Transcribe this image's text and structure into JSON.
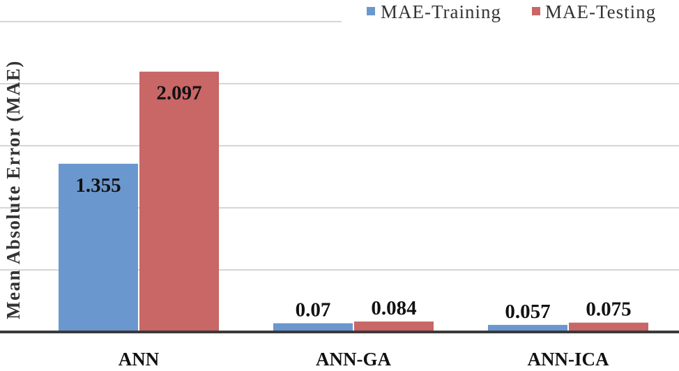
{
  "chart_data": {
    "type": "bar",
    "title": "",
    "xlabel": "",
    "ylabel": "Mean Absolute Error (MAE)",
    "categories": [
      "ANN",
      "ANN-GA",
      "ANN-ICA"
    ],
    "series": [
      {
        "name": "MAE-Training",
        "color": "#6b97cf",
        "values": [
          1.355,
          0.07,
          0.057
        ],
        "labels": [
          "1.355",
          "0.07",
          "0.057"
        ]
      },
      {
        "name": "MAE-Testing",
        "color": "#c96666",
        "values": [
          2.097,
          0.084,
          0.075
        ],
        "labels": [
          "2.097",
          "0.084",
          "0.075"
        ]
      }
    ],
    "ylim": [
      0,
      2.5
    ],
    "y_gridlines": [
      0.5,
      1.0,
      1.5,
      2.0,
      2.5
    ],
    "grid": true,
    "y_tick_labels_shown": false,
    "legend_position": "top-right",
    "data_labels": true
  }
}
